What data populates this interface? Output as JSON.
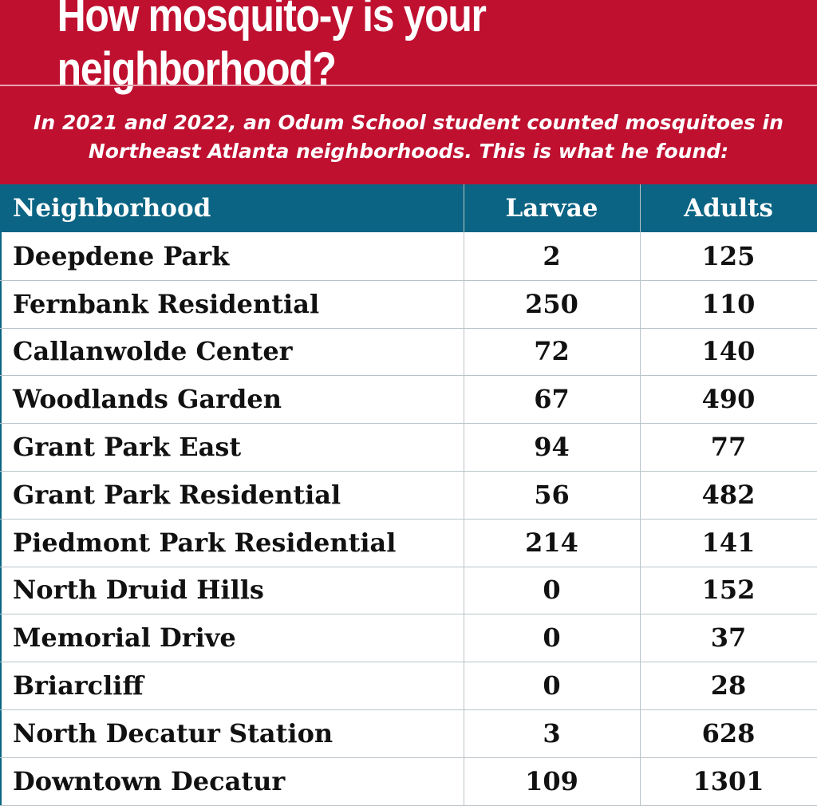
{
  "title": "How mosquito-y is your neighborhood?",
  "subtitle_line1": "In 2021 and 2022, an Odum School student counted mosquitoes in",
  "subtitle_line2": "Northeast Atlanta neighborhoods. This is what he found:",
  "colors": {
    "banner": "#bf1030",
    "header": "#0b6483",
    "grid": "#b9c4c9",
    "text": "#111111"
  },
  "chart_data": {
    "type": "table",
    "title": "How mosquito-y is your neighborhood?",
    "columns": [
      "Neighborhood",
      "Larvae",
      "Adults"
    ],
    "rows": [
      {
        "neighborhood": "Deepdene Park",
        "larvae": 2,
        "adults": 125
      },
      {
        "neighborhood": "Fernbank Residential",
        "larvae": 250,
        "adults": 110
      },
      {
        "neighborhood": "Callanwolde Center",
        "larvae": 72,
        "adults": 140
      },
      {
        "neighborhood": "Woodlands Garden",
        "larvae": 67,
        "adults": 490
      },
      {
        "neighborhood": "Grant Park East",
        "larvae": 94,
        "adults": 77
      },
      {
        "neighborhood": "Grant Park Residential",
        "larvae": 56,
        "adults": 482
      },
      {
        "neighborhood": "Piedmont Park Residential",
        "larvae": 214,
        "adults": 141
      },
      {
        "neighborhood": "North Druid Hills",
        "larvae": 0,
        "adults": 152
      },
      {
        "neighborhood": "Memorial Drive",
        "larvae": 0,
        "adults": 37
      },
      {
        "neighborhood": "Briarcliff",
        "larvae": 0,
        "adults": 28
      },
      {
        "neighborhood": "North Decatur Station",
        "larvae": 3,
        "adults": 628
      },
      {
        "neighborhood": "Downtown Decatur",
        "larvae": 109,
        "adults": 1301
      }
    ]
  }
}
